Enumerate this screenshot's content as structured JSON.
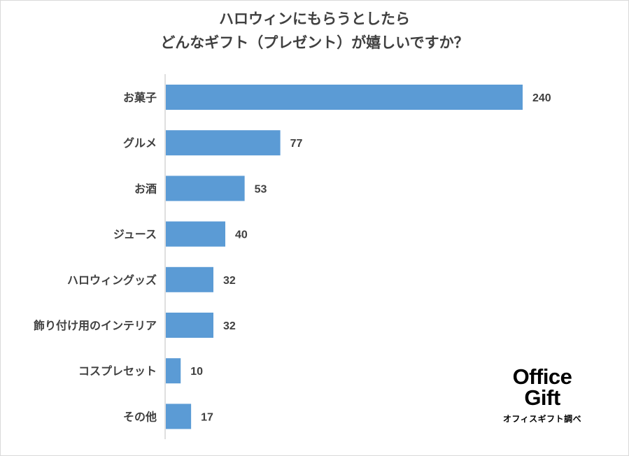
{
  "title": {
    "line1": "ハロウィンにもらうとしたら",
    "line2": "どんなギフト（プレゼント）が嬉しいですか？"
  },
  "colors": {
    "bar": "#5b9bd5",
    "axis": "#bfbfbf",
    "text": "#404040"
  },
  "chart_data": {
    "type": "bar",
    "orientation": "horizontal",
    "categories": [
      "お菓子",
      "グルメ",
      "お酒",
      "ジュース",
      "ハロウィングッズ",
      "飾り付け用のインテリア",
      "コスプレセット",
      "その他"
    ],
    "values": [
      240,
      77,
      53,
      40,
      32,
      32,
      10,
      17
    ],
    "value_labels": [
      "240",
      "77",
      "53",
      "40",
      "32",
      "32",
      "10",
      "17"
    ],
    "xlim": [
      0,
      240
    ],
    "grid": false,
    "legend": "none",
    "data_labels": true
  },
  "logo": {
    "line1": "Office",
    "line2": "Gift",
    "caption": "オフィスギフト調べ"
  }
}
